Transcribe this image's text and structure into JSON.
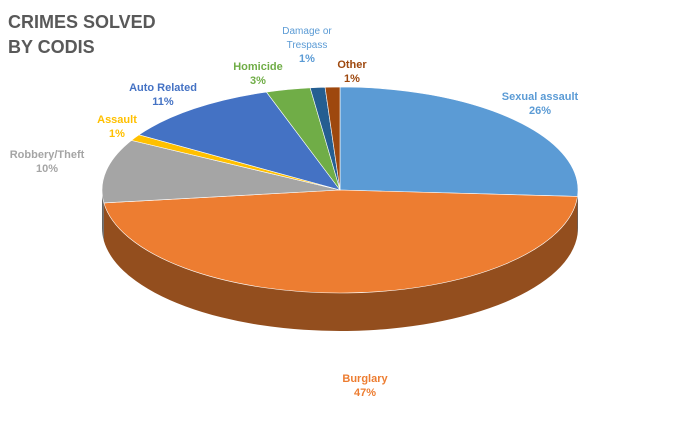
{
  "title_lines": [
    "CRIMES SOLVED",
    "BY CODIS"
  ],
  "chart_data": {
    "type": "pie",
    "title": "CRIMES SOLVED BY CODIS",
    "categories": [
      "Sexual assault",
      "Burglary",
      "Robbery/Theft",
      "Assault",
      "Auto Related",
      "Homicide",
      "Damage or Trespass",
      "Other"
    ],
    "values": [
      26,
      47,
      10,
      1,
      11,
      3,
      1,
      1
    ],
    "percent_labels": [
      "26%",
      "47%",
      "10%",
      "1%",
      "11%",
      "3%",
      "1%",
      "1%"
    ],
    "colors": [
      "#5b9bd5",
      "#ed7d31",
      "#a5a5a5",
      "#ffc000",
      "#4472c4",
      "#70ad47",
      "#255e91",
      "#9e480e"
    ],
    "label_colors": [
      "#5b9bd5",
      "#ed7d31",
      "#a5a5a5",
      "#ffc000",
      "#4472c4",
      "#70ad47",
      "#5b9bd5",
      "#9e480e"
    ],
    "style": "3d",
    "legend": "none"
  }
}
